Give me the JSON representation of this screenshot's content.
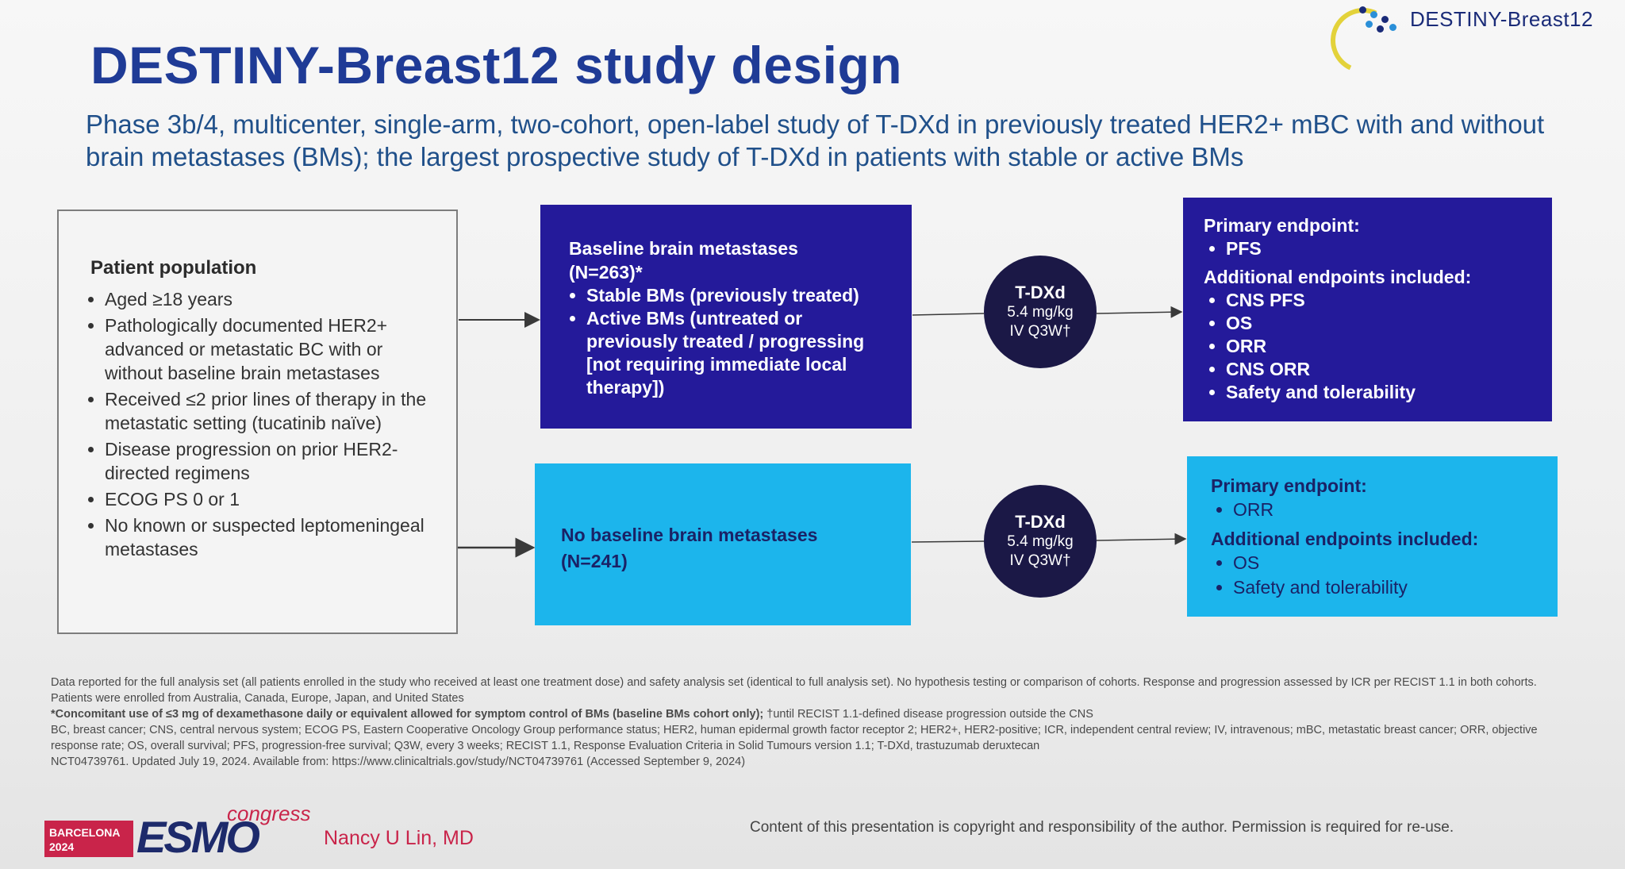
{
  "logo": {
    "text": "DESTINY-Breast12",
    "colors": [
      "#e3d23a",
      "#1a2b78",
      "#2a8fd8"
    ]
  },
  "title": "DESTINY-Breast12 study design",
  "subtitle": "Phase 3b/4, multicenter, single-arm, two-cohort, open-label study of T-DXd in previously treated HER2+ mBC with and without brain metastases (BMs); the largest prospective study of T-DXd in patients with stable or active BMs",
  "population": {
    "heading": "Patient population",
    "items": [
      "Aged ≥18 years",
      "Pathologically documented HER2+ advanced or metastatic BC with or without baseline brain metastases",
      "Received ≤2 prior lines of therapy in the metastatic setting (tucatinib naïve)",
      "Disease progression on prior HER2-directed regimens",
      "ECOG PS 0 or 1",
      "No known or suspected leptomeningeal metastases"
    ]
  },
  "cohort_bm": {
    "heading": "Baseline brain metastases",
    "n": "(N=263)*",
    "items": [
      "Stable BMs (previously treated)",
      "Active BMs (untreated or previously treated / progressing [not requiring immediate local therapy])"
    ]
  },
  "cohort_nobm": {
    "heading": "No baseline brain metastases",
    "n": "(N=241)"
  },
  "treatment": {
    "drug": "T-DXd",
    "dose": "5.4 mg/kg",
    "schedule": "IV Q3W†"
  },
  "endpoints_bm": {
    "primary_label": "Primary endpoint:",
    "primary": [
      "PFS"
    ],
    "additional_label": "Additional endpoints included:",
    "additional": [
      "CNS PFS",
      "OS",
      "ORR",
      "CNS ORR",
      "Safety and tolerability"
    ]
  },
  "endpoints_nobm": {
    "primary_label": "Primary endpoint:",
    "primary": [
      "ORR"
    ],
    "additional_label": "Additional endpoints included:",
    "additional": [
      "OS",
      "Safety and tolerability"
    ]
  },
  "footnotes": {
    "line1": "Data reported for the full analysis set (all patients enrolled in the study who received at least one treatment dose) and safety analysis set (identical to full analysis set). No hypothesis testing or comparison of cohorts. Response and progression assessed by ICR per RECIST 1.1 in both cohorts. Patients were enrolled from Australia, Canada, Europe, Japan, and United States",
    "line2_bold": "*Concomitant use of ≤3 mg of dexamethasone daily or equivalent allowed for symptom control of BMs (baseline BMs cohort only);",
    "line2_rest": " †until RECIST 1.1-defined disease progression outside the CNS",
    "line3": "BC, breast cancer; CNS, central nervous system; ECOG PS, Eastern Cooperative Oncology Group performance status; HER2, human epidermal growth factor receptor 2; HER2+, HER2-positive; ICR, independent central review; IV, intravenous; mBC, metastatic breast cancer; ORR, objective response rate; OS, overall survival; PFS, progression-free survival; Q3W, every 3 weeks; RECIST 1.1, Response Evaluation Criteria in Solid Tumours version 1.1; T-DXd, trastuzumab deruxtecan",
    "line4": "NCT04739761. Updated July 19, 2024. Available from: https://www.clinicaltrials.gov/study/NCT04739761 (Accessed September 9, 2024)"
  },
  "footer": {
    "city": "BARCELONA",
    "year": "2024",
    "esmo": "ESMO",
    "congress": "congress",
    "presenter": "Nancy U Lin, MD",
    "copyright": "Content of this presentation is copyright and responsibility of the author. Permission is required for re-use."
  },
  "colors": {
    "dark_box": "#241a9a",
    "light_box": "#1cb5ec",
    "circle": "#1b1846",
    "title": "#1f3b96",
    "accent_red": "#c9244a"
  }
}
